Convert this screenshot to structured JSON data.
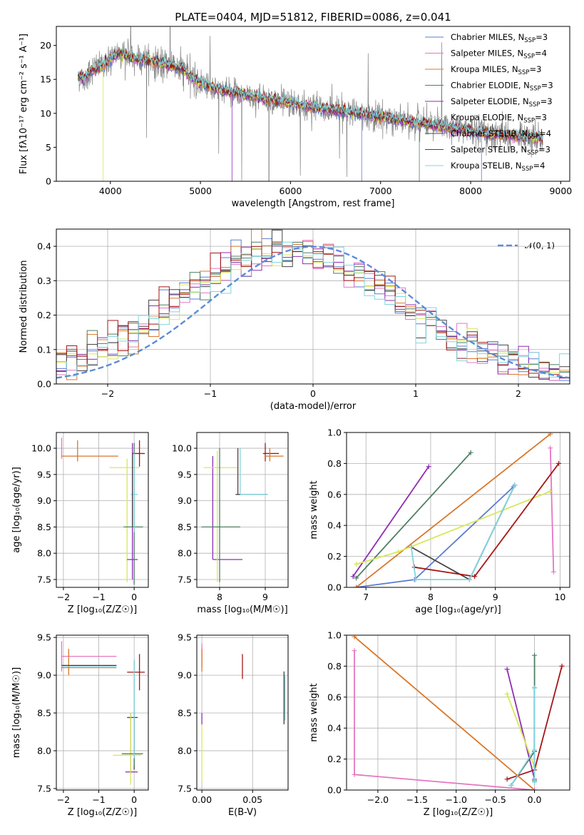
{
  "figure_title": "PLATE=0404, MJD=51812, FIBERID=0086, z=0.041",
  "models": [
    {
      "name": "Chabrier MILES",
      "nssp": "3",
      "color": "#5b7bd3"
    },
    {
      "name": "Salpeter MILES",
      "nssp": "4",
      "color": "#e377c2"
    },
    {
      "name": "Kroupa MILES",
      "nssp": "3",
      "color": "#d9772b"
    },
    {
      "name": "Chabrier ELODIE",
      "nssp": "3",
      "color": "#4f7f63"
    },
    {
      "name": "Salpeter ELODIE",
      "nssp": "3",
      "color": "#8e2db3"
    },
    {
      "name": "Kroupa ELODIE",
      "nssp": "3",
      "color": "#d7e85a"
    },
    {
      "name": "Chabrier STELIB",
      "nssp": "4",
      "color": "#444444"
    },
    {
      "name": "Salpeter STELIB",
      "nssp": "3",
      "color": "#a51616"
    },
    {
      "name": "Kroupa STELIB",
      "nssp": "4",
      "color": "#7fd5df"
    }
  ],
  "chart_data": [
    {
      "id": "spectrum",
      "type": "line",
      "xlabel": "wavelength [Angstrom, rest frame]",
      "ylabel": "Flux [fλ10⁻¹⁷ erg cm⁻² s⁻¹ A⁻¹]",
      "xlim": [
        3400,
        9100
      ],
      "ylim": [
        0,
        22.8
      ],
      "xticks": [
        4000,
        5000,
        6000,
        7000,
        8000,
        9000
      ],
      "yticks": [
        0,
        5,
        10,
        15,
        20
      ],
      "data_color": "#808080",
      "continuum": {
        "x": [
          3650,
          3700,
          3800,
          3900,
          4000,
          4100,
          4200,
          4300,
          4400,
          4500,
          4600,
          4700,
          4800,
          4900,
          5000,
          5200,
          5400,
          5600,
          5800,
          6000,
          6200,
          6400,
          6600,
          6800,
          7000,
          7200,
          7400,
          7600,
          7800,
          8000,
          8200,
          8400,
          8600,
          8800
        ],
        "y": [
          15.5,
          15.0,
          16.5,
          17.0,
          18.0,
          19.0,
          18.5,
          18.0,
          17.8,
          17.5,
          17.2,
          17.0,
          16.5,
          15.3,
          14.5,
          13.5,
          13.0,
          12.5,
          12.0,
          11.5,
          11.0,
          10.6,
          10.2,
          9.8,
          9.5,
          9.0,
          8.6,
          8.2,
          7.8,
          7.4,
          7.0,
          6.8,
          6.5,
          6.3
        ]
      },
      "legend_position": "top-right"
    },
    {
      "id": "residuals",
      "type": "step",
      "xlabel": "(data-model)/error",
      "ylabel": "Normed distribution",
      "xlim": [
        -2.5,
        2.5
      ],
      "ylim": [
        0,
        0.45
      ],
      "xticks": [
        -2,
        -1,
        0,
        1,
        2
      ],
      "yticks": [
        0.0,
        0.1,
        0.2,
        0.3,
        0.4
      ],
      "bins": [
        -2.5,
        -2.4,
        -2.3,
        -2.2,
        -2.1,
        -2.0,
        -1.9,
        -1.8,
        -1.7,
        -1.6,
        -1.5,
        -1.4,
        -1.3,
        -1.2,
        -1.1,
        -1.0,
        -0.9,
        -0.8,
        -0.7,
        -0.6,
        -0.5,
        -0.4,
        -0.3,
        -0.2,
        -0.1,
        0.0,
        0.1,
        0.2,
        0.3,
        0.4,
        0.5,
        0.6,
        0.7,
        0.8,
        0.9,
        1.0,
        1.1,
        1.2,
        1.3,
        1.4,
        1.5,
        1.6,
        1.7,
        1.8,
        1.9,
        2.0,
        2.1,
        2.2,
        2.3,
        2.4,
        2.5
      ],
      "reference": {
        "name": "𝒩(0, 1)",
        "color": "#5b8bd8",
        "mean": 0,
        "sigma": 1
      },
      "grid": true,
      "legend_position": "top-right"
    },
    {
      "id": "age-vs-Z",
      "type": "errorbar",
      "xlabel": "Z [log₁₀(Z/Z☉)]",
      "ylabel": "age  [log₁₀(age/yr)]",
      "xlim": [
        -2.2,
        0.4
      ],
      "ylim": [
        7.35,
        10.3
      ],
      "xticks": [
        -2,
        -1,
        0
      ],
      "yticks": [
        7.5,
        8.0,
        8.5,
        9.0,
        9.5,
        10.0
      ],
      "grid": true
    },
    {
      "id": "age-vs-mass",
      "type": "errorbar",
      "xlabel": "mass [log₁₀(M/M☉)]",
      "ylabel": "",
      "xlim": [
        7.5,
        9.5
      ],
      "ylim": [
        7.35,
        10.3
      ],
      "xticks": [
        8,
        9
      ],
      "yticks": [
        7.5,
        8.0,
        8.5,
        9.0,
        9.5,
        10.0
      ],
      "grid": true
    },
    {
      "id": "weight-vs-age",
      "type": "line",
      "xlabel": "age  [log₁₀(age/yr)]",
      "ylabel": "mass weight",
      "xlim": [
        6.7,
        10.15
      ],
      "ylim": [
        0,
        1
      ],
      "xticks": [
        7,
        8,
        9,
        10
      ],
      "yticks": [
        0.0,
        0.2,
        0.4,
        0.6,
        0.8,
        1.0
      ],
      "grid": true,
      "series": [
        {
          "model": 0,
          "x": [
            6.85,
            7.75,
            9.28
          ],
          "y": [
            0.0,
            0.05,
            0.65
          ]
        },
        {
          "model": 1,
          "x": [
            9.9,
            9.85
          ],
          "y": [
            0.1,
            0.9
          ]
        },
        {
          "model": 2,
          "x": [
            6.85,
            9.85
          ],
          "y": [
            0.0,
            0.99
          ]
        },
        {
          "model": 3,
          "x": [
            6.85,
            8.62
          ],
          "y": [
            0.06,
            0.87
          ]
        },
        {
          "model": 4,
          "x": [
            6.8,
            7.97
          ],
          "y": [
            0.07,
            0.78
          ]
        },
        {
          "model": 5,
          "x": [
            6.85,
            7.5,
            9.85
          ],
          "y": [
            0.15,
            0.23,
            0.62
          ]
        },
        {
          "model": 6,
          "x": [
            7.7,
            8.6,
            9.3
          ],
          "y": [
            0.26,
            0.05,
            0.66
          ]
        },
        {
          "model": 7,
          "x": [
            7.75,
            8.68,
            9.98
          ],
          "y": [
            0.13,
            0.07,
            0.8
          ]
        },
        {
          "model": 8,
          "x": [
            7.7,
            7.77,
            8.6,
            9.3
          ],
          "y": [
            0.26,
            0.05,
            0.05,
            0.66
          ]
        }
      ]
    },
    {
      "id": "mass-vs-Z",
      "type": "errorbar",
      "xlabel": "Z [log₁₀(Z/Z☉)]",
      "ylabel": "mass [log₁₀(M/M☉)]",
      "xlim": [
        -2.2,
        0.4
      ],
      "ylim": [
        7.48,
        9.53
      ],
      "xticks": [
        -2,
        -1,
        0
      ],
      "yticks": [
        7.5,
        8.0,
        8.5,
        9.0,
        9.5
      ],
      "grid": true
    },
    {
      "id": "mass-vs-ebv",
      "type": "errorbar",
      "xlabel": "E(B-V)",
      "ylabel": "",
      "xlim": [
        -0.005,
        0.085
      ],
      "ylim": [
        7.48,
        9.53
      ],
      "xticks": [
        0.0,
        0.05
      ],
      "xtick_labels": [
        "0.00",
        "0.05"
      ],
      "yticks": [
        7.5,
        8.0,
        8.5,
        9.0,
        9.5
      ],
      "grid": true,
      "segments": [
        {
          "model": 1,
          "x": 0.0,
          "y": [
            9.1,
            9.42
          ]
        },
        {
          "model": 2,
          "x": 0.0,
          "y": [
            9.05,
            9.35
          ]
        },
        {
          "model": 4,
          "x": 0.0,
          "y": [
            8.35,
            8.5
          ]
        },
        {
          "model": 5,
          "x": 0.0,
          "y": [
            7.6,
            8.35
          ]
        },
        {
          "model": 7,
          "x": 0.04,
          "y": [
            8.95,
            9.28
          ]
        },
        {
          "model": 6,
          "x": 0.081,
          "y": [
            8.35,
            9.05
          ]
        },
        {
          "model": 8,
          "x": 0.082,
          "y": [
            8.4,
            9.0
          ]
        }
      ]
    },
    {
      "id": "weight-vs-Z",
      "type": "line",
      "xlabel": "Z [log₁₀(Z/Z☉)]",
      "ylabel": "mass weight",
      "xlim": [
        -2.4,
        0.45
      ],
      "ylim": [
        0,
        1
      ],
      "xticks": [
        -2.0,
        -1.5,
        -1.0,
        -0.5,
        0.0
      ],
      "yticks": [
        0.0,
        0.2,
        0.4,
        0.6,
        0.8,
        1.0
      ],
      "grid": true,
      "series": [
        {
          "model": 2,
          "x": [
            -2.3,
            0.0
          ],
          "y": [
            0.99,
            0.0
          ]
        },
        {
          "model": 1,
          "x": [
            -2.3,
            -2.3,
            0.0
          ],
          "y": [
            0.9,
            0.1,
            0.0
          ]
        },
        {
          "model": 4,
          "x": [
            -0.35,
            0.0
          ],
          "y": [
            0.78,
            0.07
          ]
        },
        {
          "model": 5,
          "x": [
            -0.35,
            0.0
          ],
          "y": [
            0.62,
            0.15
          ]
        },
        {
          "model": 3,
          "x": [
            0.0,
            0.0
          ],
          "y": [
            0.87,
            0.06
          ]
        },
        {
          "model": 7,
          "x": [
            -0.35,
            0.0,
            0.35
          ],
          "y": [
            0.07,
            0.13,
            0.8
          ]
        },
        {
          "model": 6,
          "x": [
            -0.3,
            0.0,
            0.0
          ],
          "y": [
            0.03,
            0.25,
            0.66
          ]
        },
        {
          "model": 8,
          "x": [
            -0.3,
            0.0,
            0.0,
            0.0
          ],
          "y": [
            0.03,
            0.26,
            0.05,
            0.66
          ]
        }
      ]
    }
  ]
}
